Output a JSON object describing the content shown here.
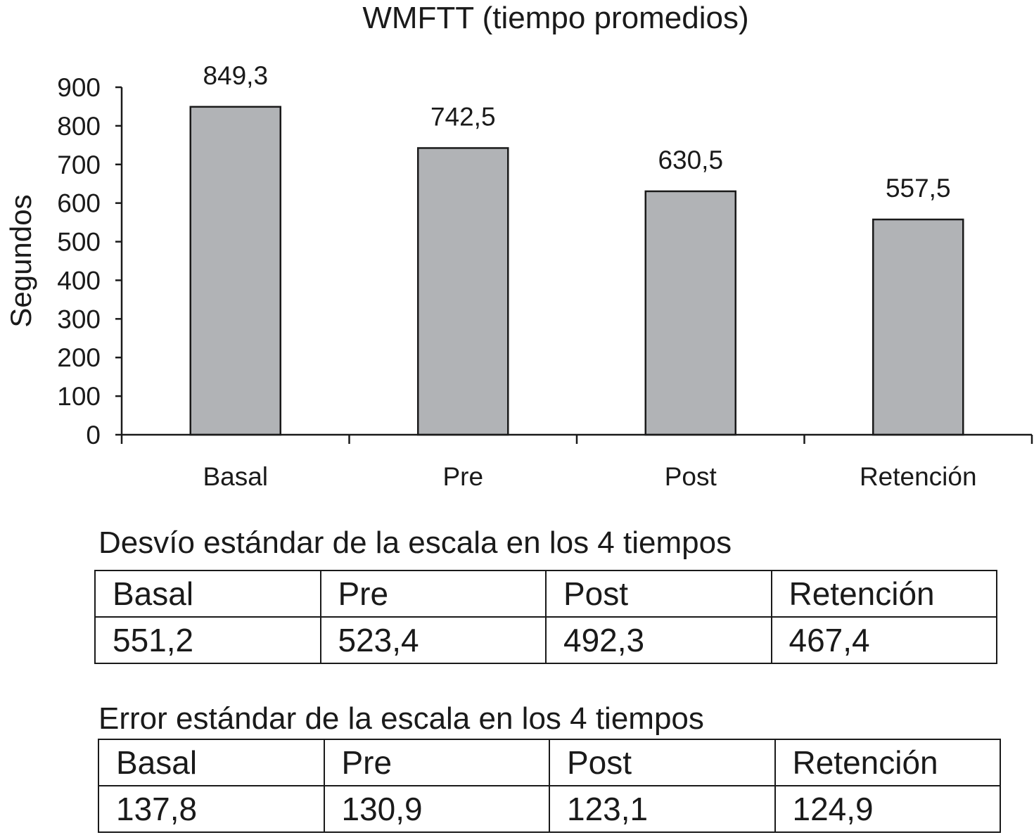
{
  "chart_data": {
    "type": "bar",
    "title": "WMFTT (tiempo promedios)",
    "ylabel": "Segundos",
    "xlabel": "",
    "categories": [
      "Basal",
      "Pre",
      "Post",
      "Retención"
    ],
    "values": [
      849.3,
      742.5,
      630.5,
      557.5
    ],
    "value_labels": [
      "849,3",
      "742,5",
      "630,5",
      "557,5"
    ],
    "ylim": [
      0,
      900
    ],
    "yticks": [
      0,
      100,
      200,
      300,
      400,
      500,
      600,
      700,
      800,
      900
    ],
    "grid": false,
    "bar_color": "#b1b3b6"
  },
  "tables": [
    {
      "title": "Desvío estándar de la escala en los 4 tiempos",
      "header": [
        "Basal",
        "Pre",
        "Post",
        "Retención"
      ],
      "values": [
        "551,2",
        "523,4",
        "492,3",
        "467,4"
      ]
    },
    {
      "title": "Error estándar de la escala en los 4 tiempos",
      "header": [
        "Basal",
        "Pre",
        "Post",
        "Retención"
      ],
      "values": [
        "137,8",
        "130,9",
        "123,1",
        "124,9"
      ]
    }
  ]
}
